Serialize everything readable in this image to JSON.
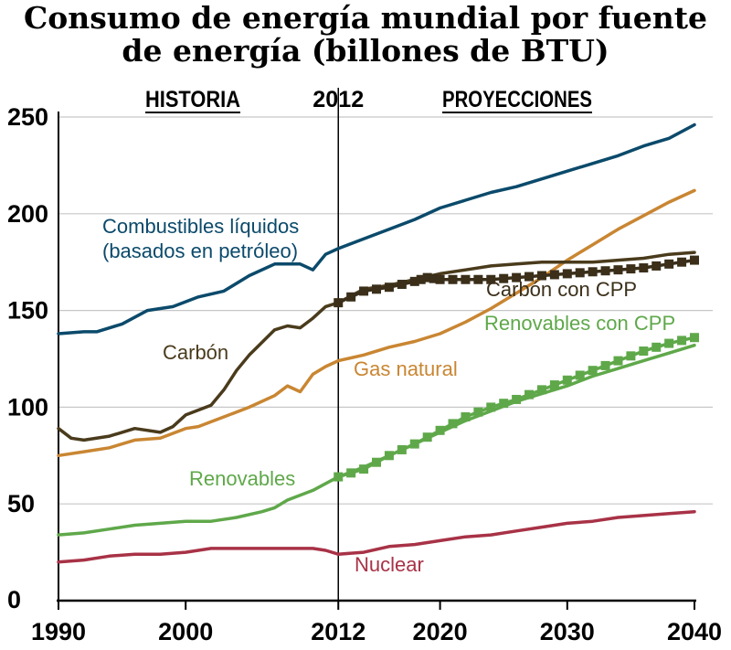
{
  "title_line1": "Consumo de energía mundial por fuente",
  "title_line2": "de energía (billones de BTU)",
  "chart_data": {
    "type": "line",
    "title": "Consumo de energía mundial por fuente de energía (billones de BTU)",
    "xlim": [
      1990,
      2040
    ],
    "ylim": [
      0,
      250
    ],
    "x_ticks": [
      "1990",
      "2000",
      "2012",
      "2020",
      "2030",
      "2040"
    ],
    "y_ticks": [
      "0",
      "50",
      "100",
      "150",
      "200",
      "250"
    ],
    "grid": "horizontal",
    "sections": {
      "history": "HISTORIA",
      "divider": "2012",
      "projections": "PROYECCIONES"
    },
    "divider_year": 2012,
    "series": [
      {
        "name": "Combustibles líquidos",
        "label_sub": "(basados en petróleo)",
        "color": "#0b4a6b",
        "points": [
          [
            1990,
            138
          ],
          [
            1992,
            139
          ],
          [
            1993,
            139
          ],
          [
            1995,
            143
          ],
          [
            1997,
            150
          ],
          [
            1999,
            152
          ],
          [
            2001,
            157
          ],
          [
            2003,
            160
          ],
          [
            2005,
            168
          ],
          [
            2007,
            174
          ],
          [
            2009,
            174
          ],
          [
            2010,
            171
          ],
          [
            2011,
            179
          ],
          [
            2012,
            182
          ],
          [
            2014,
            187
          ],
          [
            2016,
            192
          ],
          [
            2018,
            197
          ],
          [
            2020,
            203
          ],
          [
            2022,
            207
          ],
          [
            2024,
            211
          ],
          [
            2026,
            214
          ],
          [
            2028,
            218
          ],
          [
            2030,
            222
          ],
          [
            2032,
            226
          ],
          [
            2034,
            230
          ],
          [
            2036,
            235
          ],
          [
            2038,
            239
          ],
          [
            2040,
            246
          ]
        ]
      },
      {
        "name": "Carbón",
        "color": "#4a3b1c",
        "points": [
          [
            1990,
            89
          ],
          [
            1991,
            84
          ],
          [
            1992,
            83
          ],
          [
            1994,
            85
          ],
          [
            1996,
            89
          ],
          [
            1998,
            87
          ],
          [
            1999,
            90
          ],
          [
            2000,
            96
          ],
          [
            2002,
            101
          ],
          [
            2003,
            109
          ],
          [
            2004,
            119
          ],
          [
            2005,
            127
          ],
          [
            2007,
            140
          ],
          [
            2008,
            142
          ],
          [
            2009,
            141
          ],
          [
            2010,
            146
          ],
          [
            2011,
            152
          ],
          [
            2012,
            154
          ],
          [
            2014,
            161
          ],
          [
            2016,
            163
          ],
          [
            2018,
            166
          ],
          [
            2020,
            169
          ],
          [
            2022,
            171
          ],
          [
            2024,
            173
          ],
          [
            2026,
            174
          ],
          [
            2028,
            175
          ],
          [
            2030,
            175
          ],
          [
            2032,
            175
          ],
          [
            2034,
            176
          ],
          [
            2036,
            177
          ],
          [
            2038,
            179
          ],
          [
            2040,
            180
          ]
        ]
      },
      {
        "name": "Carbón con CPP",
        "color": "#3b2f1a",
        "markers": "square",
        "points": [
          [
            2012,
            154
          ],
          [
            2014,
            160
          ],
          [
            2016,
            162
          ],
          [
            2018,
            165
          ],
          [
            2019,
            167
          ],
          [
            2020,
            166
          ],
          [
            2022,
            166
          ],
          [
            2024,
            166
          ],
          [
            2026,
            167
          ],
          [
            2028,
            168
          ],
          [
            2030,
            169
          ],
          [
            2032,
            170
          ],
          [
            2034,
            171
          ],
          [
            2036,
            172
          ],
          [
            2038,
            174
          ],
          [
            2040,
            176
          ]
        ]
      },
      {
        "name": "Gas natural",
        "color": "#c98632",
        "points": [
          [
            1990,
            75
          ],
          [
            1992,
            77
          ],
          [
            1994,
            79
          ],
          [
            1996,
            83
          ],
          [
            1998,
            84
          ],
          [
            2000,
            89
          ],
          [
            2001,
            90
          ],
          [
            2003,
            95
          ],
          [
            2005,
            100
          ],
          [
            2007,
            106
          ],
          [
            2008,
            111
          ],
          [
            2009,
            108
          ],
          [
            2010,
            117
          ],
          [
            2011,
            121
          ],
          [
            2012,
            124
          ],
          [
            2014,
            127
          ],
          [
            2016,
            131
          ],
          [
            2018,
            134
          ],
          [
            2020,
            138
          ],
          [
            2022,
            144
          ],
          [
            2024,
            151
          ],
          [
            2026,
            159
          ],
          [
            2028,
            167
          ],
          [
            2030,
            176
          ],
          [
            2032,
            184
          ],
          [
            2034,
            192
          ],
          [
            2036,
            199
          ],
          [
            2038,
            206
          ],
          [
            2040,
            212
          ]
        ]
      },
      {
        "name": "Renovables",
        "color": "#5fa84a",
        "points": [
          [
            1990,
            34
          ],
          [
            1992,
            35
          ],
          [
            1994,
            37
          ],
          [
            1996,
            39
          ],
          [
            1998,
            40
          ],
          [
            2000,
            41
          ],
          [
            2002,
            41
          ],
          [
            2004,
            43
          ],
          [
            2006,
            46
          ],
          [
            2007,
            48
          ],
          [
            2008,
            52
          ],
          [
            2010,
            57
          ],
          [
            2012,
            64
          ],
          [
            2014,
            69
          ],
          [
            2016,
            75
          ],
          [
            2018,
            81
          ],
          [
            2020,
            87
          ],
          [
            2022,
            93
          ],
          [
            2024,
            98
          ],
          [
            2026,
            103
          ],
          [
            2028,
            107
          ],
          [
            2030,
            111
          ],
          [
            2032,
            116
          ],
          [
            2034,
            120
          ],
          [
            2036,
            124
          ],
          [
            2038,
            128
          ],
          [
            2040,
            132
          ]
        ]
      },
      {
        "name": "Renovables con CPP",
        "color": "#5fa84a",
        "markers": "square",
        "points": [
          [
            2012,
            64
          ],
          [
            2014,
            68
          ],
          [
            2016,
            75
          ],
          [
            2018,
            81
          ],
          [
            2020,
            88
          ],
          [
            2022,
            95
          ],
          [
            2024,
            100
          ],
          [
            2026,
            104
          ],
          [
            2028,
            109
          ],
          [
            2030,
            114
          ],
          [
            2032,
            119
          ],
          [
            2034,
            124
          ],
          [
            2036,
            129
          ],
          [
            2038,
            133
          ],
          [
            2040,
            136
          ]
        ]
      },
      {
        "name": "Nuclear",
        "color": "#a83246",
        "points": [
          [
            1990,
            20
          ],
          [
            1992,
            21
          ],
          [
            1994,
            23
          ],
          [
            1996,
            24
          ],
          [
            1998,
            24
          ],
          [
            2000,
            25
          ],
          [
            2002,
            27
          ],
          [
            2004,
            27
          ],
          [
            2006,
            27
          ],
          [
            2008,
            27
          ],
          [
            2010,
            27
          ],
          [
            2011,
            26
          ],
          [
            2012,
            24
          ],
          [
            2014,
            25
          ],
          [
            2016,
            28
          ],
          [
            2018,
            29
          ],
          [
            2020,
            31
          ],
          [
            2022,
            33
          ],
          [
            2024,
            34
          ],
          [
            2026,
            36
          ],
          [
            2028,
            38
          ],
          [
            2030,
            40
          ],
          [
            2032,
            41
          ],
          [
            2034,
            43
          ],
          [
            2036,
            44
          ],
          [
            2038,
            45
          ],
          [
            2040,
            46
          ]
        ]
      }
    ]
  }
}
